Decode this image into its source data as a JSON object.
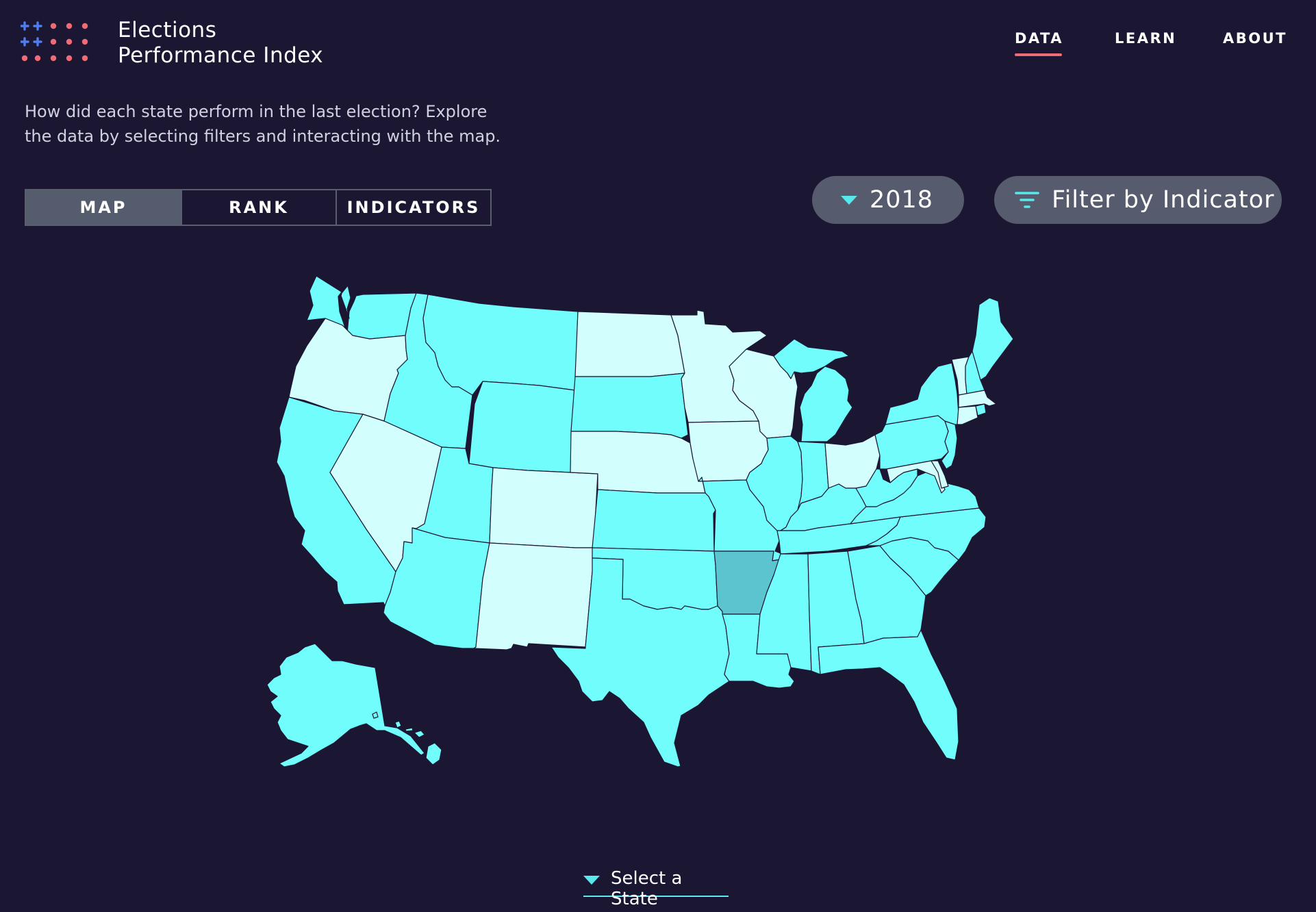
{
  "brand": {
    "line1": "Elections",
    "line2": "Performance Index"
  },
  "nav": [
    {
      "label": "DATA",
      "active": true
    },
    {
      "label": "LEARN",
      "active": false
    },
    {
      "label": "ABOUT",
      "active": false
    }
  ],
  "intro": {
    "line1": "How did each state perform in the last election? Explore",
    "line2": "the data by selecting filters and interacting with the map."
  },
  "views": [
    {
      "label": "MAP",
      "active": true
    },
    {
      "label": "RANK",
      "active": false
    },
    {
      "label": "INDICATORS",
      "active": false
    }
  ],
  "year_select": {
    "value": "2018",
    "icon": "caret-down-icon"
  },
  "filter": {
    "label": "Filter by Indicator",
    "icon": "filter-icon"
  },
  "map": {
    "colors": {
      "high": "#72fdfd",
      "light": "#d3fefe",
      "selected": "#5cc4cf",
      "stroke": "#1b1733"
    },
    "highlighted_state": "Arkansas"
  },
  "state_select": {
    "label": "Select a State",
    "icon": "caret-down-icon"
  },
  "colors": {
    "background": "#1b1733",
    "accent": "#f06b74",
    "logo_blue": "#4f7df0",
    "control": "#565c6d"
  }
}
